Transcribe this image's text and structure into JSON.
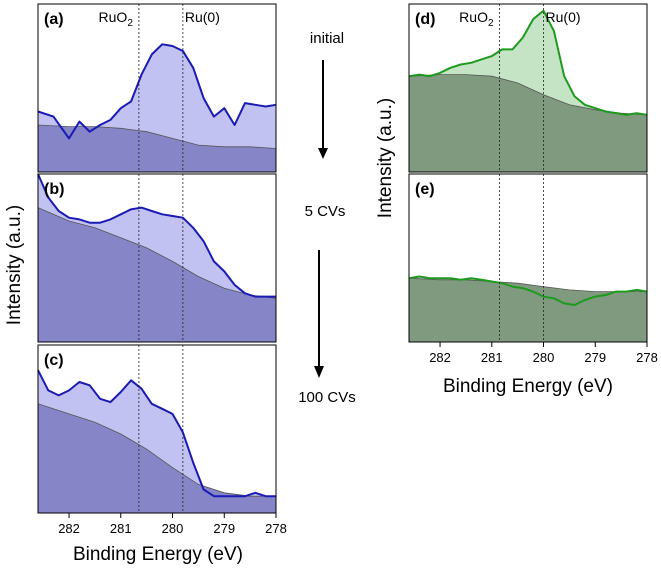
{
  "figure": {
    "left_ylabel": "Intensity (a.u.)",
    "right_ylabel": "Intensity (a.u.)",
    "left_xlabel": "Binding Energy (eV)",
    "right_xlabel": "Binding Energy (eV)",
    "marker_labels": [
      "RuO2",
      "Ru(0)"
    ],
    "conditions": [
      "initial",
      "5 CVs",
      "100 CVs"
    ],
    "colors": {
      "blue_line": "#1a1ab4",
      "blue_fill": "#c2c2f2",
      "blue_bg": "#8585c8",
      "green_line": "#1e9a1e",
      "green_fill": "#c5e3c5",
      "green_bg": "#7f9a7f",
      "bg_line": "#555555"
    }
  },
  "chart_data": [
    {
      "panel": "(a)",
      "type": "area",
      "condition": "initial",
      "xlabel": "",
      "ylabel": "Intensity (a.u.)",
      "xlim": [
        282.6,
        278.0
      ],
      "ylim": [
        0,
        1
      ],
      "markers": [
        {
          "x": 280.65,
          "label": "RuO2"
        },
        {
          "x": 279.8,
          "label": "Ru(0)"
        }
      ],
      "series": [
        {
          "name": "spectrum",
          "x": [
            282.6,
            282.3,
            282.0,
            281.8,
            281.6,
            281.4,
            281.2,
            281.0,
            280.8,
            280.6,
            280.4,
            280.2,
            280.0,
            279.8,
            279.6,
            279.4,
            279.2,
            279.0,
            278.8,
            278.6,
            278.4,
            278.2,
            278.0
          ],
          "y": [
            0.36,
            0.33,
            0.2,
            0.3,
            0.24,
            0.28,
            0.31,
            0.38,
            0.42,
            0.58,
            0.7,
            0.76,
            0.75,
            0.72,
            0.62,
            0.44,
            0.33,
            0.38,
            0.28,
            0.41,
            0.4,
            0.39,
            0.4
          ]
        },
        {
          "name": "background",
          "x": [
            282.6,
            282.0,
            281.5,
            281.0,
            280.5,
            280.0,
            279.5,
            279.0,
            278.5,
            278.0
          ],
          "y": [
            0.28,
            0.27,
            0.27,
            0.26,
            0.24,
            0.2,
            0.16,
            0.15,
            0.15,
            0.14
          ]
        }
      ]
    },
    {
      "panel": "(b)",
      "type": "area",
      "condition": "5 CVs",
      "xlabel": "",
      "ylabel": "Intensity (a.u.)",
      "xlim": [
        282.6,
        278.0
      ],
      "ylim": [
        0,
        1
      ],
      "markers": [
        {
          "x": 280.65,
          "label": "RuO2"
        },
        {
          "x": 279.8,
          "label": "Ru(0)"
        }
      ],
      "series": [
        {
          "name": "spectrum",
          "x": [
            282.6,
            282.4,
            282.2,
            282.0,
            281.8,
            281.6,
            281.4,
            281.2,
            281.0,
            280.8,
            280.6,
            280.4,
            280.2,
            280.0,
            279.8,
            279.6,
            279.4,
            279.2,
            279.0,
            278.8,
            278.6,
            278.4,
            278.2,
            278.0
          ],
          "y": [
            1.0,
            0.86,
            0.78,
            0.74,
            0.73,
            0.71,
            0.71,
            0.73,
            0.76,
            0.79,
            0.8,
            0.78,
            0.76,
            0.75,
            0.74,
            0.68,
            0.6,
            0.48,
            0.42,
            0.34,
            0.29,
            0.27,
            0.27,
            0.27
          ]
        },
        {
          "name": "background",
          "x": [
            282.6,
            282.0,
            281.5,
            281.0,
            280.5,
            280.0,
            279.5,
            279.0,
            278.5,
            278.0
          ],
          "y": [
            0.8,
            0.72,
            0.68,
            0.62,
            0.56,
            0.48,
            0.39,
            0.32,
            0.28,
            0.26
          ]
        }
      ]
    },
    {
      "panel": "(c)",
      "type": "area",
      "condition": "100 CVs",
      "xlabel": "Binding Energy (eV)",
      "ylabel": "Intensity (a.u.)",
      "xlim": [
        282.6,
        278.0
      ],
      "ylim": [
        0,
        1
      ],
      "xticks": [
        282,
        281,
        280,
        279,
        278
      ],
      "markers": [
        {
          "x": 280.65,
          "label": "RuO2"
        },
        {
          "x": 279.8,
          "label": "Ru(0)"
        }
      ],
      "series": [
        {
          "name": "spectrum",
          "x": [
            282.6,
            282.4,
            282.2,
            282.0,
            281.8,
            281.6,
            281.4,
            281.2,
            281.0,
            280.8,
            280.6,
            280.4,
            280.2,
            280.0,
            279.8,
            279.6,
            279.4,
            279.2,
            279.0,
            278.8,
            278.6,
            278.4,
            278.2,
            278.0
          ],
          "y": [
            0.85,
            0.73,
            0.7,
            0.73,
            0.78,
            0.76,
            0.68,
            0.66,
            0.72,
            0.79,
            0.74,
            0.65,
            0.62,
            0.59,
            0.48,
            0.3,
            0.14,
            0.1,
            0.1,
            0.1,
            0.1,
            0.12,
            0.1,
            0.1
          ]
        },
        {
          "name": "background",
          "x": [
            282.6,
            282.0,
            281.5,
            281.0,
            280.5,
            280.0,
            279.5,
            279.0,
            278.5,
            278.0
          ],
          "y": [
            0.65,
            0.59,
            0.54,
            0.47,
            0.38,
            0.27,
            0.17,
            0.12,
            0.1,
            0.1
          ]
        }
      ]
    },
    {
      "panel": "(d)",
      "type": "area",
      "condition": "",
      "xlabel": "",
      "ylabel": "Intensity (a.u.)",
      "xlim": [
        282.6,
        278.0
      ],
      "ylim": [
        0,
        1
      ],
      "markers": [
        {
          "x": 280.85,
          "label": "RuO2"
        },
        {
          "x": 280.0,
          "label": "Ru(0)"
        }
      ],
      "series": [
        {
          "name": "spectrum",
          "x": [
            282.6,
            282.4,
            282.2,
            282.0,
            281.8,
            281.6,
            281.4,
            281.2,
            281.0,
            280.8,
            280.6,
            280.4,
            280.2,
            280.0,
            279.8,
            279.6,
            279.4,
            279.2,
            279.0,
            278.8,
            278.6,
            278.4,
            278.2,
            278.0
          ],
          "y": [
            0.57,
            0.58,
            0.57,
            0.59,
            0.62,
            0.64,
            0.65,
            0.67,
            0.69,
            0.73,
            0.73,
            0.8,
            0.91,
            0.96,
            0.84,
            0.57,
            0.45,
            0.4,
            0.38,
            0.36,
            0.35,
            0.34,
            0.35,
            0.34
          ]
        },
        {
          "name": "background",
          "x": [
            282.6,
            282.0,
            281.5,
            281.0,
            280.5,
            280.0,
            279.5,
            279.0,
            278.5,
            278.0
          ],
          "y": [
            0.57,
            0.58,
            0.58,
            0.57,
            0.53,
            0.46,
            0.4,
            0.37,
            0.35,
            0.34
          ]
        }
      ]
    },
    {
      "panel": "(e)",
      "type": "area",
      "condition": "",
      "xlabel": "Binding Energy (eV)",
      "ylabel": "Intensity (a.u.)",
      "xlim": [
        282.6,
        278.0
      ],
      "ylim": [
        0,
        1
      ],
      "xticks": [
        282,
        281,
        280,
        279,
        278
      ],
      "markers": [
        {
          "x": 280.85,
          "label": "RuO2"
        },
        {
          "x": 280.0,
          "label": "Ru(0)"
        }
      ],
      "series": [
        {
          "name": "spectrum",
          "x": [
            282.6,
            282.4,
            282.2,
            282.0,
            281.8,
            281.6,
            281.4,
            281.2,
            281.0,
            280.8,
            280.6,
            280.4,
            280.2,
            280.0,
            279.8,
            279.6,
            279.4,
            279.2,
            279.0,
            278.8,
            278.6,
            278.4,
            278.2,
            278.0
          ],
          "y": [
            0.38,
            0.39,
            0.38,
            0.38,
            0.38,
            0.37,
            0.38,
            0.37,
            0.36,
            0.35,
            0.33,
            0.32,
            0.3,
            0.27,
            0.26,
            0.23,
            0.22,
            0.25,
            0.27,
            0.28,
            0.3,
            0.3,
            0.31,
            0.3
          ]
        },
        {
          "name": "background",
          "x": [
            282.6,
            282.0,
            281.5,
            281.0,
            280.5,
            280.0,
            279.5,
            279.0,
            278.5,
            278.0
          ],
          "y": [
            0.38,
            0.37,
            0.37,
            0.36,
            0.35,
            0.33,
            0.31,
            0.3,
            0.3,
            0.3
          ]
        }
      ]
    }
  ]
}
